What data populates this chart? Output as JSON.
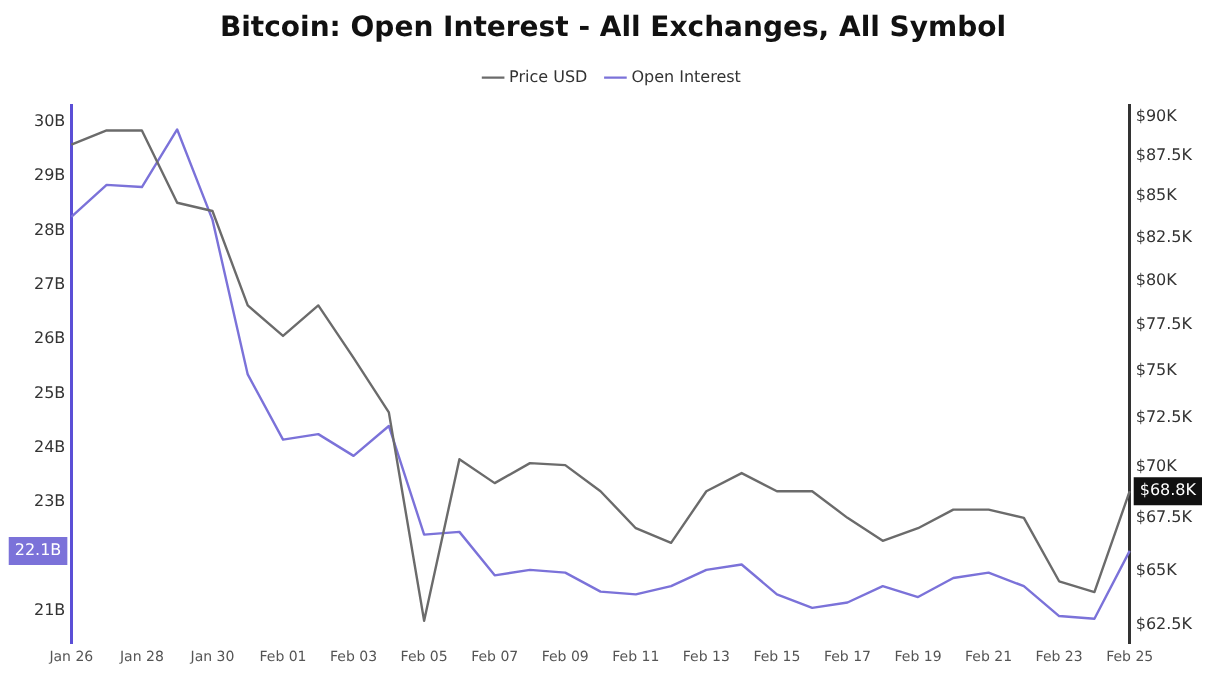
{
  "chart_data": {
    "type": "line",
    "title": "Bitcoin: Open Interest - All Exchanges, All Symbol",
    "categories": [
      "Jan 26",
      null,
      "Jan 28",
      null,
      "Jan 30",
      null,
      "Feb 01",
      null,
      "Feb 03",
      null,
      "Feb 05",
      null,
      "Feb 07",
      null,
      "Feb 09",
      null,
      "Feb 11",
      null,
      "Feb 13",
      null,
      "Feb 15",
      null,
      "Feb 17",
      null,
      "Feb 19",
      null,
      "Feb 21",
      null,
      "Feb 23",
      null,
      "Feb 25"
    ],
    "series": [
      {
        "name": "Price USD",
        "color": "#6b6b6b",
        "axis": "y2",
        "values": [
          88.2,
          89.1,
          89.1,
          84.6,
          84.1,
          78.6,
          76.9,
          78.6,
          75.7,
          72.8,
          62.7,
          70.4,
          69.2,
          70.2,
          70.1,
          68.8,
          67.0,
          66.3,
          68.8,
          69.7,
          68.8,
          68.8,
          67.5,
          66.4,
          67.0,
          67.9,
          67.9,
          67.5,
          64.5,
          64.0,
          68.8
        ]
      },
      {
        "name": "Open Interest",
        "color": "#7b72d9",
        "axis": "y",
        "values": [
          28.25,
          28.84,
          28.8,
          29.86,
          28.2,
          25.35,
          24.15,
          24.25,
          23.85,
          24.4,
          22.4,
          22.45,
          21.65,
          21.75,
          21.7,
          21.35,
          21.3,
          21.45,
          21.75,
          21.85,
          21.3,
          21.05,
          21.15,
          21.45,
          21.25,
          21.6,
          21.7,
          21.45,
          20.9,
          20.85,
          22.1
        ]
      }
    ],
    "ylim": [
      20.4,
      30.3
    ],
    "yticks": [
      {
        "value": 21,
        "label": "21B"
      },
      {
        "value": 23,
        "label": "23B"
      },
      {
        "value": 24,
        "label": "24B"
      },
      {
        "value": 25,
        "label": "25B"
      },
      {
        "value": 26,
        "label": "26B"
      },
      {
        "value": 27,
        "label": "27B"
      },
      {
        "value": 28,
        "label": "28B"
      },
      {
        "value": 29,
        "label": "29B"
      },
      {
        "value": 30,
        "label": "30B"
      }
    ],
    "y2lim": [
      61.7,
      90.7
    ],
    "y2ticks": [
      {
        "value": 62.5,
        "label": "$62.5K"
      },
      {
        "value": 65,
        "label": "$65K"
      },
      {
        "value": 67.5,
        "label": "$67.5K"
      },
      {
        "value": 70,
        "label": "$70K"
      },
      {
        "value": 72.5,
        "label": "$72.5K"
      },
      {
        "value": 75,
        "label": "$75K"
      },
      {
        "value": 77.5,
        "label": "$77.5K"
      },
      {
        "value": 80,
        "label": "$80K"
      },
      {
        "value": 82.5,
        "label": "$82.5K"
      },
      {
        "value": 85,
        "label": "$85K"
      },
      {
        "value": 87.5,
        "label": "$87.5K"
      },
      {
        "value": 90,
        "label": "$90K"
      }
    ],
    "log": "y2",
    "grid": false,
    "legend": "top",
    "marker": "none",
    "annotations": [
      "$68.8K",
      "22.1B"
    ]
  }
}
